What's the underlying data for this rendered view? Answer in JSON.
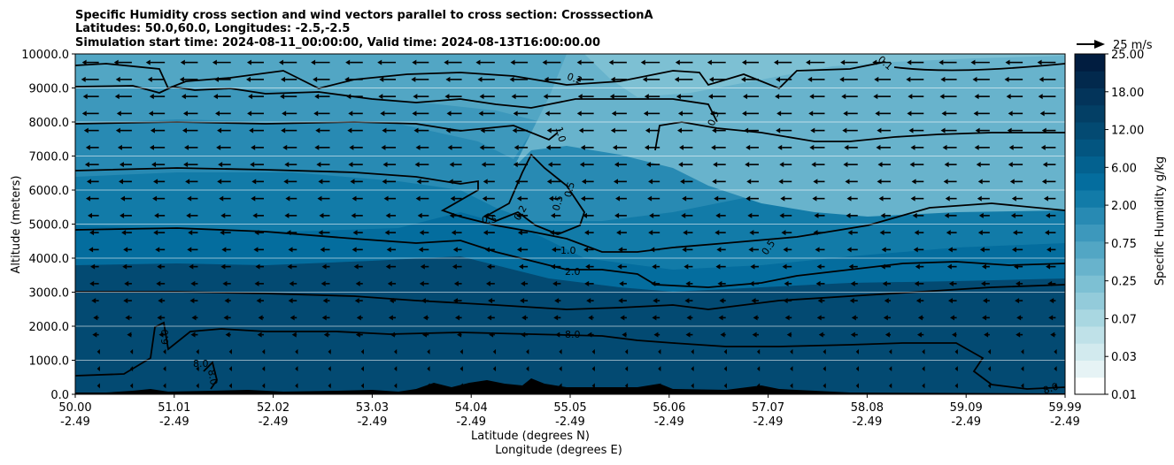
{
  "chart_data": {
    "type": "contour",
    "title": [
      "Specific Humidity cross section and wind vectors parallel to cross section: CrosssectionA",
      "Latitudes: 50.0,60.0, Longitudes: -2.5,-2.5",
      "Simulation start time: 2024-08-11_00:00:00, Valid time: 2024-08-13T16:00:00.00"
    ],
    "ylabel": "Altitude (meters)",
    "xlabel_lines": [
      "Latitude (degrees N)",
      "Longitude (degrees E)"
    ],
    "ylim": [
      0,
      10000
    ],
    "y_ticks": [
      "0.0",
      "1000.0",
      "2000.0",
      "3000.0",
      "4000.0",
      "5000.0",
      "6000.0",
      "7000.0",
      "8000.0",
      "9000.0",
      "10000.0"
    ],
    "y_tick_values": [
      0,
      1000,
      2000,
      3000,
      4000,
      5000,
      6000,
      7000,
      8000,
      9000,
      10000
    ],
    "x_ticks": [
      {
        "lat": "50.00",
        "lon": "-2.49"
      },
      {
        "lat": "51.01",
        "lon": "-2.49"
      },
      {
        "lat": "52.02",
        "lon": "-2.49"
      },
      {
        "lat": "53.03",
        "lon": "-2.49"
      },
      {
        "lat": "54.04",
        "lon": "-2.49"
      },
      {
        "lat": "55.05",
        "lon": "-2.49"
      },
      {
        "lat": "56.06",
        "lon": "-2.49"
      },
      {
        "lat": "57.07",
        "lon": "-2.49"
      },
      {
        "lat": "58.08",
        "lon": "-2.49"
      },
      {
        "lat": "59.09",
        "lon": "-2.49"
      },
      {
        "lat": "59.99",
        "lon": "-2.49"
      }
    ],
    "grid": "horizontal lines only",
    "colorbar": {
      "label": "Specific Humidity g/kg",
      "ticks": [
        "0.01",
        "0.03",
        "0.07",
        "0.25",
        "0.75",
        "2.00",
        "6.00",
        "12.00",
        "18.00",
        "25.00"
      ],
      "colors": [
        "#ffffff",
        "#e6f3f5",
        "#d2eaee",
        "#bfe1e8",
        "#a9d7e1",
        "#93cbda",
        "#7dc0d3",
        "#68b3cc",
        "#52a6c4",
        "#3d98bc",
        "#288ab3",
        "#127ba8",
        "#046d9e",
        "#03618f",
        "#035580",
        "#034a72",
        "#033f65",
        "#03345a",
        "#02294d",
        "#011d40"
      ]
    },
    "contour_labels": [
      "0.1",
      "0.2",
      "0.5",
      "1.0",
      "0.5",
      "0.5",
      "0.5",
      "0.2",
      "0.5",
      "1.0",
      "2.0",
      "8.0",
      "6.0",
      "8.0",
      "8.0",
      "8.0"
    ],
    "quiver_key": {
      "label": "25 m/s",
      "speed": 25
    },
    "wind_direction": "towards decreasing latitude (left)",
    "terrain_color": "#000000"
  }
}
